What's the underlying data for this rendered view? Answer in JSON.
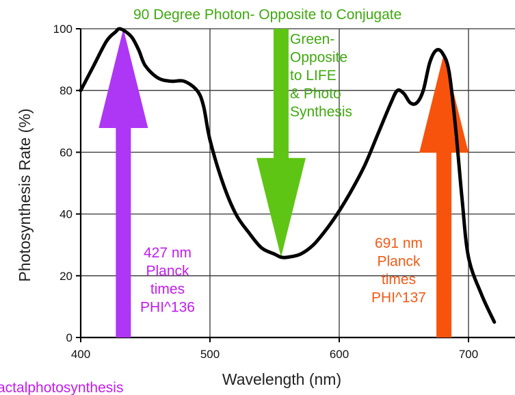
{
  "chart_data": {
    "type": "line",
    "title": "",
    "xlabel": "Wavelength (nm)",
    "ylabel": "Photosynthesis Rate (%)",
    "xlim": [
      400,
      720
    ],
    "ylim": [
      0,
      100
    ],
    "x_ticks": [
      "400",
      "500",
      "600",
      "700"
    ],
    "y_ticks": [
      "0",
      "20",
      "40",
      "60",
      "80",
      "100"
    ],
    "grid": true,
    "series": [
      {
        "x": [
          400,
          410,
          420,
          427,
          430,
          435,
          440,
          445,
          450,
          460,
          470,
          480,
          490,
          495,
          500,
          510,
          520,
          530,
          540,
          550,
          555,
          560,
          570,
          580,
          590,
          600,
          610,
          620,
          630,
          640,
          645,
          650,
          655,
          660,
          665,
          670,
          675,
          680,
          685,
          690,
          695,
          700,
          710,
          720
        ],
        "y": [
          80,
          88,
          96,
          99,
          100,
          99,
          97,
          93,
          88,
          84,
          83,
          83,
          80,
          75,
          64,
          50,
          40,
          34,
          29,
          27,
          26,
          26,
          27,
          30,
          35,
          41,
          48,
          56,
          66,
          76,
          80,
          79,
          76,
          76,
          80,
          89,
          93,
          92,
          86,
          68,
          45,
          26,
          14,
          5
        ],
        "color": "#000000"
      }
    ]
  },
  "annotations": {
    "top_title": {
      "text": "90 Degree Photon- Opposite to Conjugate",
      "color": "#3fa80f"
    },
    "green_label": {
      "lines": [
        "Green-",
        "Opposite",
        "to LIFE",
        "& Photo",
        "Synthesis"
      ],
      "color": "#3fa80f"
    },
    "purple_label": {
      "lines": [
        "427 nm",
        "Planck",
        "times",
        "PHI^136"
      ],
      "color": "#c21cf0"
    },
    "orange_label": {
      "lines": [
        "691 nm",
        "Planck",
        "times",
        "PHI^137"
      ],
      "color": "#f25a16"
    },
    "watermark": {
      "text": "actalphotosynthesis",
      "color": "#c21cf0"
    }
  },
  "arrows": [
    {
      "name": "purple-arrow",
      "direction": "up",
      "x_nm": 433,
      "y_from": 0,
      "y_to": 100,
      "color": "#ad37f5"
    },
    {
      "name": "green-arrow",
      "direction": "down",
      "x_nm": 555,
      "y_from": 100,
      "y_to": 26,
      "color": "#5fc515"
    },
    {
      "name": "orange-arrow",
      "direction": "up",
      "x_nm": 681,
      "y_from": 0,
      "y_to": 92,
      "color": "#f7530c"
    }
  ]
}
